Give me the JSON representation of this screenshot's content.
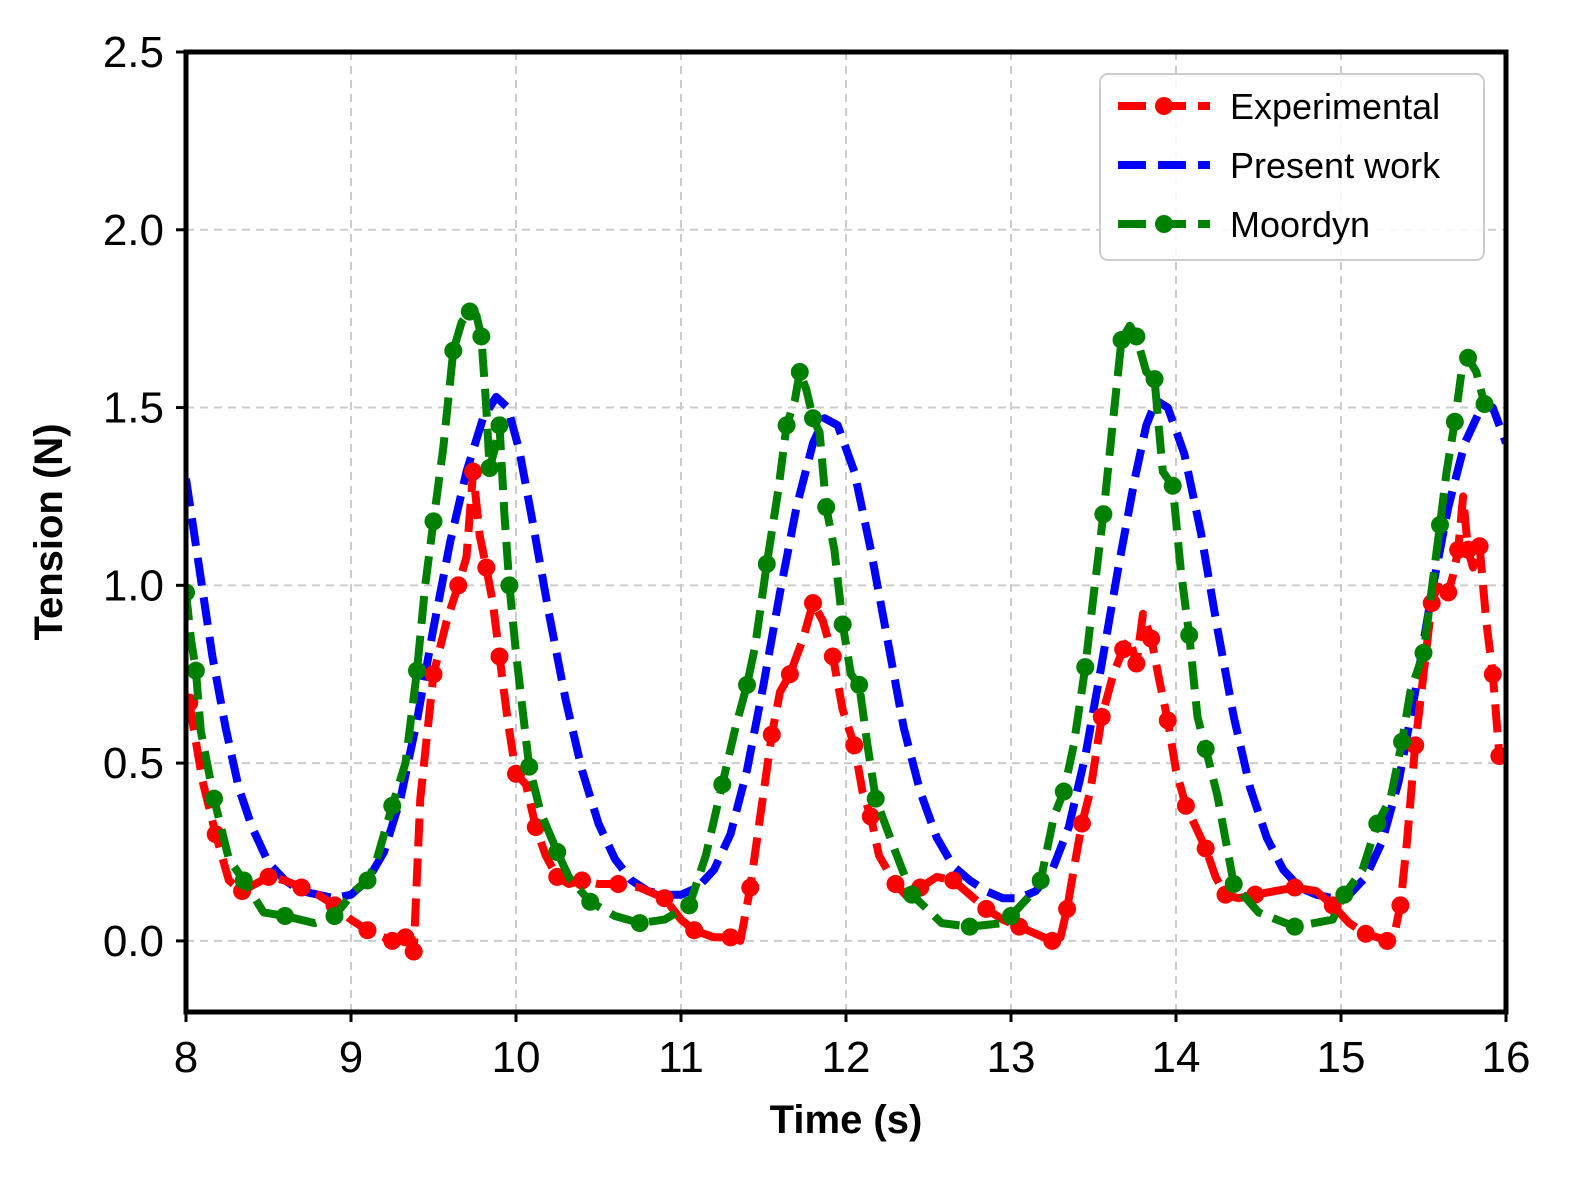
{
  "chart_data": {
    "type": "line",
    "title": "",
    "xlabel": "Time (s)",
    "ylabel": "Tension (N)",
    "xlim": [
      8,
      16
    ],
    "ylim": [
      -0.2,
      2.5
    ],
    "xticks": [
      8,
      9,
      10,
      11,
      12,
      13,
      14,
      15,
      16
    ],
    "yticks": [
      0.0,
      0.5,
      1.0,
      1.5,
      2.0,
      2.5
    ],
    "xtick_labels": [
      "8",
      "9",
      "10",
      "11",
      "12",
      "13",
      "14",
      "15",
      "16"
    ],
    "ytick_labels": [
      "0.0",
      "0.5",
      "1.0",
      "1.5",
      "2.0",
      "2.5"
    ],
    "grid": true,
    "legend_position": "top-right",
    "series": [
      {
        "name": "Experimental",
        "color": "#ff0000",
        "linestyle": "dashed",
        "marker": "circle",
        "x": [
          8.02,
          8.1,
          8.18,
          8.26,
          8.34,
          8.42,
          8.5,
          8.6,
          8.7,
          8.8,
          8.9,
          9.0,
          9.1,
          9.2,
          9.25,
          9.3,
          9.33,
          9.36,
          9.38,
          9.42,
          9.5,
          9.58,
          9.65,
          9.7,
          9.74,
          9.78,
          9.82,
          9.86,
          9.9,
          9.95,
          10.0,
          10.06,
          10.12,
          10.18,
          10.25,
          10.32,
          10.4,
          10.5,
          10.62,
          10.75,
          10.9,
          11.0,
          11.08,
          11.2,
          11.3,
          11.36,
          11.42,
          11.48,
          11.55,
          11.6,
          11.66,
          11.74,
          11.8,
          11.86,
          11.92,
          11.98,
          12.05,
          12.1,
          12.15,
          12.2,
          12.3,
          12.38,
          12.45,
          12.55,
          12.65,
          12.75,
          12.85,
          12.95,
          13.05,
          13.15,
          13.25,
          13.3,
          13.34,
          13.38,
          13.43,
          13.48,
          13.55,
          13.62,
          13.68,
          13.72,
          13.76,
          13.8,
          13.85,
          13.9,
          13.95,
          14.0,
          14.06,
          14.12,
          14.18,
          14.24,
          14.3,
          14.38,
          14.48,
          14.6,
          14.72,
          14.85,
          14.95,
          15.05,
          15.15,
          15.22,
          15.28,
          15.32,
          15.36,
          15.4,
          15.45,
          15.5,
          15.55,
          15.6,
          15.65,
          15.68,
          15.71,
          15.74,
          15.77,
          15.8,
          15.84,
          15.88,
          15.92,
          15.96
        ],
        "y": [
          0.67,
          0.45,
          0.3,
          0.17,
          0.14,
          0.16,
          0.18,
          0.17,
          0.15,
          0.13,
          0.1,
          0.06,
          0.03,
          0.01,
          0.0,
          0.0,
          0.01,
          0.03,
          -0.03,
          0.4,
          0.75,
          0.9,
          1.0,
          1.08,
          1.32,
          1.14,
          1.05,
          0.95,
          0.8,
          0.62,
          0.47,
          0.44,
          0.32,
          0.24,
          0.18,
          0.16,
          0.17,
          0.16,
          0.16,
          0.15,
          0.12,
          0.06,
          0.03,
          0.01,
          0.01,
          0.0,
          0.15,
          0.35,
          0.58,
          0.7,
          0.75,
          0.85,
          0.95,
          0.9,
          0.8,
          0.65,
          0.55,
          0.42,
          0.35,
          0.24,
          0.16,
          0.12,
          0.15,
          0.18,
          0.17,
          0.13,
          0.09,
          0.06,
          0.04,
          0.02,
          0.0,
          0.01,
          0.09,
          0.2,
          0.33,
          0.42,
          0.63,
          0.75,
          0.82,
          0.85,
          0.78,
          0.92,
          0.85,
          0.73,
          0.62,
          0.48,
          0.38,
          0.32,
          0.26,
          0.18,
          0.13,
          0.12,
          0.13,
          0.14,
          0.15,
          0.14,
          0.1,
          0.05,
          0.02,
          0.01,
          0.0,
          0.01,
          0.1,
          0.28,
          0.55,
          0.75,
          0.95,
          1.02,
          0.98,
          1.03,
          1.1,
          1.25,
          1.1,
          1.05,
          1.11,
          0.9,
          0.75,
          0.52
        ]
      },
      {
        "name": "Present work",
        "color": "#0000ff",
        "linestyle": "dashed",
        "marker": "none",
        "x": [
          8.0,
          8.08,
          8.16,
          8.24,
          8.32,
          8.4,
          8.5,
          8.6,
          8.7,
          8.8,
          8.9,
          9.0,
          9.1,
          9.2,
          9.3,
          9.4,
          9.5,
          9.6,
          9.7,
          9.8,
          9.88,
          9.95,
          10.02,
          10.1,
          10.2,
          10.3,
          10.4,
          10.5,
          10.6,
          10.7,
          10.8,
          10.9,
          11.0,
          11.1,
          11.2,
          11.3,
          11.4,
          11.5,
          11.6,
          11.7,
          11.8,
          11.87,
          11.95,
          12.05,
          12.15,
          12.25,
          12.35,
          12.45,
          12.55,
          12.65,
          12.75,
          12.85,
          12.95,
          13.05,
          13.15,
          13.25,
          13.35,
          13.45,
          13.55,
          13.65,
          13.75,
          13.82,
          13.88,
          13.95,
          14.05,
          14.15,
          14.25,
          14.35,
          14.45,
          14.55,
          14.65,
          14.75,
          14.85,
          14.95,
          15.05,
          15.15,
          15.25,
          15.35,
          15.45,
          15.55,
          15.65,
          15.75,
          15.85,
          15.92,
          16.0
        ],
        "y": [
          1.3,
          1.05,
          0.8,
          0.6,
          0.43,
          0.32,
          0.22,
          0.17,
          0.14,
          0.13,
          0.12,
          0.13,
          0.17,
          0.25,
          0.4,
          0.62,
          0.88,
          1.12,
          1.32,
          1.47,
          1.53,
          1.5,
          1.38,
          1.18,
          0.92,
          0.68,
          0.48,
          0.33,
          0.23,
          0.17,
          0.14,
          0.13,
          0.13,
          0.15,
          0.2,
          0.3,
          0.48,
          0.72,
          0.98,
          1.22,
          1.4,
          1.47,
          1.45,
          1.32,
          1.1,
          0.85,
          0.6,
          0.42,
          0.29,
          0.21,
          0.17,
          0.14,
          0.12,
          0.12,
          0.14,
          0.2,
          0.32,
          0.52,
          0.78,
          1.05,
          1.3,
          1.45,
          1.52,
          1.5,
          1.37,
          1.15,
          0.88,
          0.63,
          0.43,
          0.29,
          0.2,
          0.15,
          0.13,
          0.12,
          0.13,
          0.18,
          0.28,
          0.45,
          0.7,
          0.98,
          1.22,
          1.4,
          1.5,
          1.5,
          1.4
        ]
      },
      {
        "name": "Moordyn",
        "color": "#008000",
        "linestyle": "dashed",
        "marker": "circle",
        "x": [
          8.0,
          8.03,
          8.06,
          8.09,
          8.17,
          8.26,
          8.35,
          8.47,
          8.6,
          8.78,
          8.9,
          9.02,
          9.1,
          9.15,
          9.25,
          9.33,
          9.4,
          9.45,
          9.5,
          9.56,
          9.62,
          9.67,
          9.72,
          9.76,
          9.79,
          9.82,
          9.84,
          9.87,
          9.9,
          9.93,
          9.96,
          10.0,
          10.08,
          10.15,
          10.25,
          10.32,
          10.45,
          10.6,
          10.75,
          10.9,
          11.05,
          11.15,
          11.25,
          11.33,
          11.4,
          11.45,
          11.52,
          11.59,
          11.64,
          11.69,
          11.72,
          11.76,
          11.8,
          11.84,
          11.88,
          11.93,
          11.98,
          12.03,
          12.08,
          12.13,
          12.18,
          12.3,
          12.4,
          12.58,
          12.75,
          12.95,
          13.0,
          13.1,
          13.18,
          13.26,
          13.32,
          13.38,
          13.45,
          13.5,
          13.56,
          13.62,
          13.67,
          13.72,
          13.76,
          13.82,
          13.87,
          13.92,
          13.98,
          14.03,
          14.08,
          14.13,
          14.18,
          14.25,
          14.35,
          14.5,
          14.72,
          14.95,
          15.02,
          15.13,
          15.22,
          15.3,
          15.37,
          15.42,
          15.5,
          15.55,
          15.6,
          15.64,
          15.69,
          15.73,
          15.77,
          15.82,
          15.87
        ],
        "y": [
          0.98,
          0.85,
          0.76,
          0.59,
          0.4,
          0.23,
          0.17,
          0.08,
          0.07,
          0.05,
          0.07,
          0.14,
          0.17,
          0.22,
          0.38,
          0.5,
          0.76,
          1.0,
          1.18,
          1.39,
          1.66,
          1.74,
          1.77,
          1.76,
          1.7,
          1.5,
          1.33,
          1.38,
          1.45,
          1.2,
          1.0,
          0.81,
          0.49,
          0.36,
          0.25,
          0.18,
          0.11,
          0.07,
          0.05,
          0.06,
          0.1,
          0.24,
          0.44,
          0.6,
          0.72,
          0.83,
          1.06,
          1.27,
          1.45,
          1.52,
          1.6,
          1.55,
          1.47,
          1.43,
          1.22,
          1.1,
          0.89,
          0.75,
          0.72,
          0.55,
          0.4,
          0.25,
          0.13,
          0.05,
          0.04,
          0.05,
          0.07,
          0.12,
          0.17,
          0.35,
          0.42,
          0.55,
          0.77,
          0.97,
          1.2,
          1.47,
          1.69,
          1.73,
          1.7,
          1.6,
          1.58,
          1.32,
          1.28,
          1.04,
          0.86,
          0.63,
          0.54,
          0.41,
          0.16,
          0.08,
          0.04,
          0.06,
          0.13,
          0.2,
          0.33,
          0.4,
          0.56,
          0.7,
          0.81,
          0.99,
          1.17,
          1.32,
          1.46,
          1.6,
          1.64,
          1.6,
          1.51
        ]
      }
    ]
  }
}
